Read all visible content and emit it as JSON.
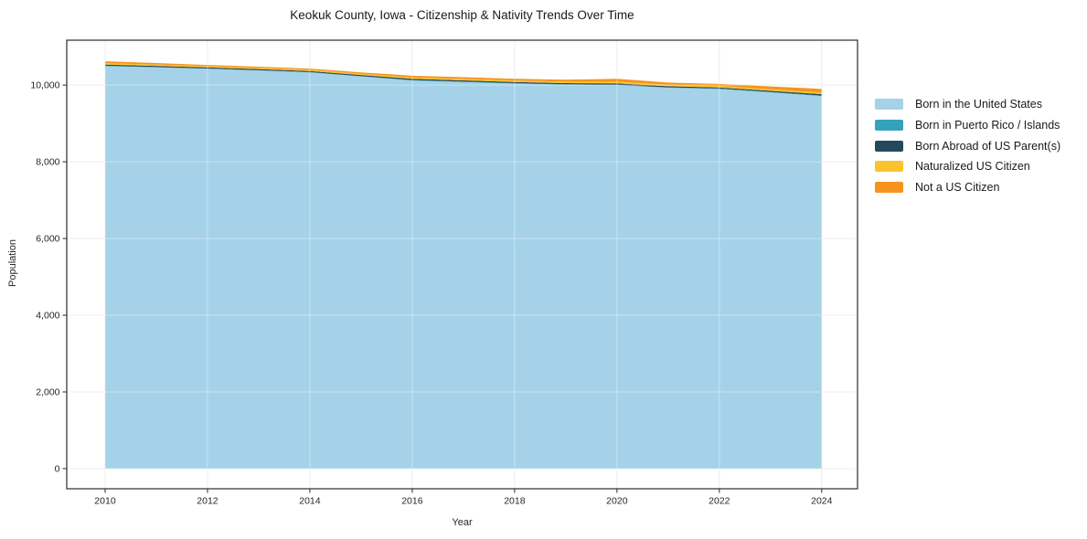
{
  "figure": {
    "title": "Keokuk County, Iowa - Citizenship & Nativity Trends Over Time"
  },
  "chart_data": {
    "type": "area",
    "stacked": true,
    "title": "Keokuk County, Iowa - Citizenship & Nativity Trends Over Time",
    "xlabel": "Year",
    "ylabel": "Population",
    "x": [
      2010,
      2011,
      2012,
      2013,
      2014,
      2015,
      2016,
      2017,
      2018,
      2019,
      2020,
      2021,
      2022,
      2023,
      2024
    ],
    "series": [
      {
        "name": "Born in the United States",
        "color": "#a5d2e8",
        "values": [
          10495,
          10460,
          10425,
          10380,
          10330,
          10225,
          10120,
          10080,
          10040,
          10010,
          10000,
          9930,
          9900,
          9810,
          9715
        ]
      },
      {
        "name": "Born in Puerto Rico / Islands",
        "color": "#35a2bd",
        "values": [
          10,
          10,
          8,
          8,
          8,
          8,
          10,
          10,
          10,
          10,
          10,
          10,
          10,
          10,
          10
        ]
      },
      {
        "name": "Born Abroad of US Parent(s)",
        "color": "#24495c",
        "values": [
          30,
          30,
          28,
          28,
          28,
          30,
          35,
          32,
          30,
          30,
          35,
          30,
          28,
          32,
          38
        ]
      },
      {
        "name": "Naturalized US Citizen",
        "color": "#fcc32d",
        "values": [
          35,
          35,
          32,
          32,
          32,
          32,
          35,
          38,
          40,
          40,
          45,
          40,
          40,
          40,
          42
        ]
      },
      {
        "name": "Not a US Citizen",
        "color": "#f6931e",
        "values": [
          50,
          40,
          32,
          32,
          32,
          35,
          45,
          45,
          45,
          50,
          75,
          55,
          52,
          73,
          95
        ]
      }
    ],
    "xticks": [
      2010,
      2012,
      2014,
      2016,
      2018,
      2020,
      2022,
      2024
    ],
    "xtick_labels": [
      "2010",
      "2012",
      "2014",
      "2016",
      "2018",
      "2020",
      "2022",
      "2024"
    ],
    "yticks": [
      0,
      2000,
      4000,
      6000,
      8000,
      10000
    ],
    "ytick_labels": [
      "0",
      "2,000",
      "4,000",
      "6,000",
      "8,000",
      "10,000"
    ],
    "xlim": [
      2009.25,
      2024.7
    ],
    "ylim": [
      -525,
      11170
    ],
    "grid": true,
    "legend_position": "right",
    "colors": {
      "grid": "#e4e4e4",
      "spine": "#2b2b2b",
      "tick_text": "#262626",
      "background": "#ffffff"
    }
  }
}
